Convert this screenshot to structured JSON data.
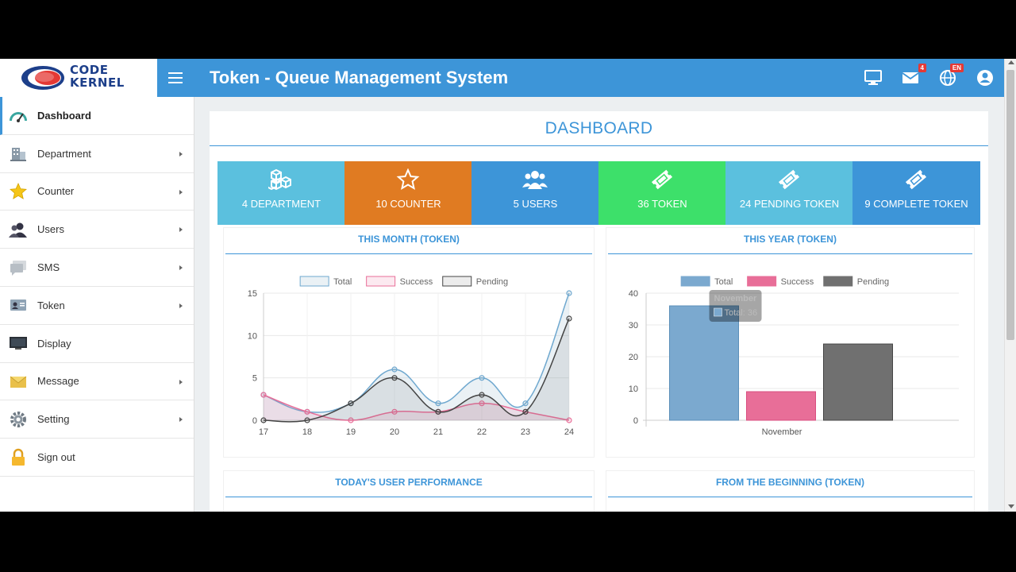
{
  "header": {
    "logo_line1": "CODE",
    "logo_line2": "KERNEL",
    "title": "Token - Queue Management System",
    "mail_badge": "4",
    "lang_badge": "EN",
    "bg_color": "#3d95d8"
  },
  "sidebar": {
    "items": [
      {
        "label": "Dashboard",
        "icon": "dashboard-gauge-icon",
        "has_submenu": false,
        "active": true
      },
      {
        "label": "Department",
        "icon": "building-icon",
        "has_submenu": true
      },
      {
        "label": "Counter",
        "icon": "star-icon",
        "has_submenu": true
      },
      {
        "label": "Users",
        "icon": "users-icon",
        "has_submenu": true
      },
      {
        "label": "SMS",
        "icon": "sms-icon",
        "has_submenu": true
      },
      {
        "label": "Token",
        "icon": "token-card-icon",
        "has_submenu": true
      },
      {
        "label": "Display",
        "icon": "monitor-icon",
        "has_submenu": false
      },
      {
        "label": "Message",
        "icon": "envelope-icon",
        "has_submenu": true
      },
      {
        "label": "Setting",
        "icon": "gear-icon",
        "has_submenu": true
      },
      {
        "label": "Sign out",
        "icon": "lock-icon",
        "has_submenu": false
      }
    ]
  },
  "main": {
    "title": "DASHBOARD",
    "tiles": [
      {
        "label": "4 DEPARTMENT",
        "color": "#5bc0de",
        "icon": "cubes-icon"
      },
      {
        "label": "10 COUNTER",
        "color": "#e07b22",
        "icon": "star-outline-icon"
      },
      {
        "label": "5 USERS",
        "color": "#3d95d8",
        "icon": "users-icon"
      },
      {
        "label": "36 TOKEN",
        "color": "#3de06a",
        "icon": "ticket-icon"
      },
      {
        "label": "24 PENDING TOKEN",
        "color": "#5bc0de",
        "icon": "ticket-icon"
      },
      {
        "label": "9 COMPLETE TOKEN",
        "color": "#3d95d8",
        "icon": "ticket-icon"
      }
    ],
    "panels": {
      "month_title": "THIS MONTH (TOKEN)",
      "year_title": "THIS YEAR (TOKEN)",
      "performance_title": "TODAY'S USER PERFORMANCE",
      "beginning_title": "FROM THE BEGINNING (TOKEN)"
    },
    "tooltip": {
      "title": "November",
      "label": "Total: 36"
    }
  },
  "chart_data": [
    {
      "type": "line",
      "title": "THIS MONTH (TOKEN)",
      "x": [
        "17",
        "18",
        "19",
        "20",
        "21",
        "22",
        "23",
        "24"
      ],
      "ylim": [
        0,
        15
      ],
      "yticks": [
        0,
        5,
        10,
        15
      ],
      "series": [
        {
          "name": "Total",
          "values": [
            3,
            1,
            2,
            6,
            2,
            5,
            2,
            15
          ],
          "color": "#6fa8cf",
          "fill": "rgba(151,187,205,0.2)"
        },
        {
          "name": "Success",
          "values": [
            3,
            1,
            0,
            1,
            1,
            2,
            1,
            0
          ],
          "color": "#e86e98",
          "fill": "rgba(232,110,152,0.15)"
        },
        {
          "name": "Pending",
          "values": [
            0,
            0,
            2,
            5,
            1,
            3,
            1,
            12
          ],
          "color": "#444444",
          "fill": "rgba(100,100,100,0.12)"
        }
      ],
      "legend": "top-center",
      "grid": true
    },
    {
      "type": "bar",
      "title": "THIS YEAR (TOKEN)",
      "categories": [
        "November"
      ],
      "ylim": [
        0,
        40
      ],
      "yticks": [
        0,
        10,
        20,
        30,
        40
      ],
      "series": [
        {
          "name": "Total",
          "values": [
            36
          ],
          "color": "#7ba9cf"
        },
        {
          "name": "Success",
          "values": [
            9
          ],
          "color": "#e86e98"
        },
        {
          "name": "Pending",
          "values": [
            24
          ],
          "color": "#707070"
        }
      ],
      "legend": "top-center",
      "grid": true
    }
  ]
}
